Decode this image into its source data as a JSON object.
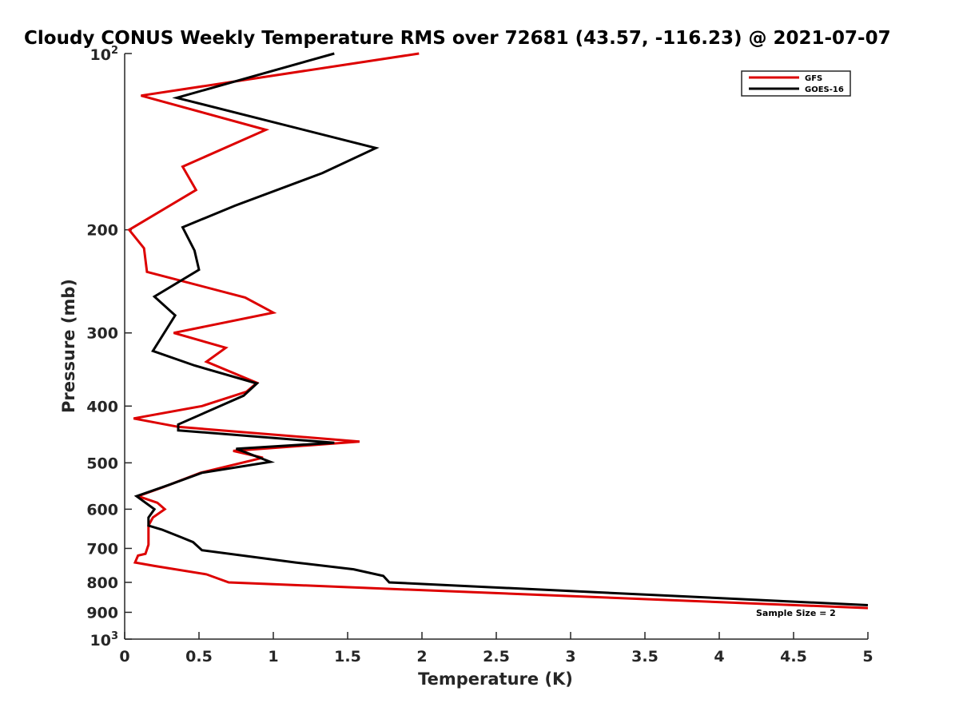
{
  "chart_data": {
    "type": "line",
    "title": "Cloudy CONUS Weekly Temperature RMS over 72681 (43.57, -116.23) @ 2021-07-07",
    "xlabel": "Temperature (K)",
    "ylabel": "Pressure (mb)",
    "xlim": [
      0,
      5
    ],
    "ylim": [
      100,
      1000
    ],
    "y_scale": "log",
    "y_reversed": true,
    "grid": false,
    "legend_position": "top-right",
    "x_ticks": [
      {
        "value": 0,
        "label": "0"
      },
      {
        "value": 0.5,
        "label": "0.5"
      },
      {
        "value": 1,
        "label": "1"
      },
      {
        "value": 1.5,
        "label": "1.5"
      },
      {
        "value": 2,
        "label": "2"
      },
      {
        "value": 2.5,
        "label": "2.5"
      },
      {
        "value": 3,
        "label": "3"
      },
      {
        "value": 3.5,
        "label": "3.5"
      },
      {
        "value": 4,
        "label": "4"
      },
      {
        "value": 4.5,
        "label": "4.5"
      },
      {
        "value": 5,
        "label": "5"
      }
    ],
    "y_ticks": [
      {
        "value": 100,
        "base": "10",
        "exp": "2"
      },
      {
        "value": 200,
        "label": "200"
      },
      {
        "value": 300,
        "label": "300"
      },
      {
        "value": 400,
        "label": "400"
      },
      {
        "value": 500,
        "label": "500"
      },
      {
        "value": 600,
        "label": "600"
      },
      {
        "value": 700,
        "label": "700"
      },
      {
        "value": 800,
        "label": "800"
      },
      {
        "value": 900,
        "label": "900"
      },
      {
        "value": 1000,
        "base": "10",
        "exp": "3"
      }
    ],
    "series": [
      {
        "name": "GFS",
        "color": "#dd0000",
        "points": [
          [
            1.98,
            100
          ],
          [
            0.11,
            118
          ],
          [
            0.95,
            135
          ],
          [
            0.39,
            156
          ],
          [
            0.48,
            171
          ],
          [
            0.03,
            200
          ],
          [
            0.13,
            215
          ],
          [
            0.15,
            236
          ],
          [
            0.81,
            261
          ],
          [
            1.0,
            277
          ],
          [
            0.33,
            300
          ],
          [
            0.68,
            318
          ],
          [
            0.55,
            336
          ],
          [
            0.89,
            365
          ],
          [
            0.82,
            378
          ],
          [
            0.52,
            400
          ],
          [
            0.06,
            420
          ],
          [
            0.36,
            434
          ],
          [
            1.58,
            460
          ],
          [
            0.73,
            477
          ],
          [
            0.93,
            490
          ],
          [
            0.51,
            520
          ],
          [
            0.26,
            550
          ],
          [
            0.09,
            570
          ],
          [
            0.22,
            585
          ],
          [
            0.27,
            600
          ],
          [
            0.19,
            620
          ],
          [
            0.16,
            640
          ],
          [
            0.16,
            660
          ],
          [
            0.16,
            690
          ],
          [
            0.14,
            715
          ],
          [
            0.09,
            720
          ],
          [
            0.07,
            740
          ],
          [
            0.2,
            750
          ],
          [
            0.55,
            775
          ],
          [
            0.7,
            800
          ],
          [
            5.0,
            885
          ]
        ]
      },
      {
        "name": "GOES-16",
        "color": "#000000",
        "points": [
          [
            1.41,
            100
          ],
          [
            0.35,
            119
          ],
          [
            1.69,
            145
          ],
          [
            1.33,
            160
          ],
          [
            0.74,
            182
          ],
          [
            0.39,
            198
          ],
          [
            0.47,
            217
          ],
          [
            0.5,
            234
          ],
          [
            0.2,
            260
          ],
          [
            0.34,
            280
          ],
          [
            0.19,
            322
          ],
          [
            0.47,
            341
          ],
          [
            0.89,
            366
          ],
          [
            0.8,
            384
          ],
          [
            0.36,
            430
          ],
          [
            0.36,
            440
          ],
          [
            1.41,
            462
          ],
          [
            0.75,
            473
          ],
          [
            0.98,
            498
          ],
          [
            0.52,
            520
          ],
          [
            0.3,
            545
          ],
          [
            0.08,
            570
          ],
          [
            0.2,
            600
          ],
          [
            0.16,
            620
          ],
          [
            0.16,
            640
          ],
          [
            0.25,
            650
          ],
          [
            0.38,
            670
          ],
          [
            0.46,
            683
          ],
          [
            0.52,
            705
          ],
          [
            1.15,
            740
          ],
          [
            1.54,
            760
          ],
          [
            1.74,
            780
          ],
          [
            1.78,
            800
          ],
          [
            5.0,
            875
          ]
        ]
      }
    ],
    "annotations": [
      {
        "text": "Sample Size = 2"
      }
    ]
  }
}
